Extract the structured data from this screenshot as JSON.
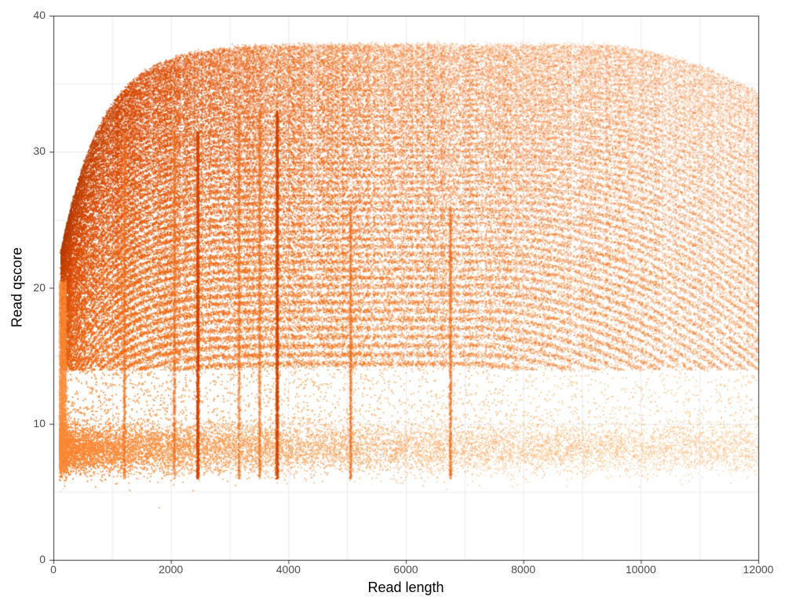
{
  "chart_data": {
    "type": "heatmap",
    "subtype": "2d-density (hex/bin count)",
    "title": "",
    "xlabel": "Read length",
    "ylabel": "Read qscore",
    "xlim": [
      0,
      12000
    ],
    "ylim": [
      0,
      40
    ],
    "x_ticks": [
      0,
      2000,
      4000,
      6000,
      8000,
      10000,
      12000
    ],
    "y_ticks": [
      0,
      10,
      20,
      30,
      40
    ],
    "x_tick_labels": [
      "0",
      "2000",
      "4000",
      "6000",
      "8000",
      "10000",
      "12000"
    ],
    "y_tick_labels": [
      "0",
      "10",
      "20",
      "30",
      "40"
    ],
    "grid": true,
    "minor_grid": true,
    "legend": "none",
    "colormap": [
      "#fff7e6",
      "#fdd49e",
      "#fdae6b",
      "#fd8d3c",
      "#f16913",
      "#d94801",
      "#a63603"
    ],
    "features": {
      "high_quality_cluster": {
        "qscore_center": 22,
        "length_range": [
          100,
          12000
        ],
        "pattern": "concentric arc bands converging toward short lengths"
      },
      "low_quality_cluster": {
        "qscore_center": 8,
        "qscore_range": [
          6,
          10
        ],
        "length_range": [
          100,
          12000
        ]
      },
      "top_arc_envelope": [
        [
          150,
          20
        ],
        [
          500,
          27
        ],
        [
          1000,
          30
        ],
        [
          2000,
          32.5
        ],
        [
          3000,
          34
        ],
        [
          4000,
          35.8
        ],
        [
          5000,
          37
        ],
        [
          5500,
          37.6
        ]
      ],
      "vertical_streaks_read_length": [
        1200,
        2050,
        2450,
        3150,
        3500,
        3800,
        5050,
        6750
      ],
      "strongest_streaks": [
        2450,
        3800
      ]
    }
  },
  "axes": {
    "xlabel": "Read length",
    "ylabel": "Read qscore"
  }
}
